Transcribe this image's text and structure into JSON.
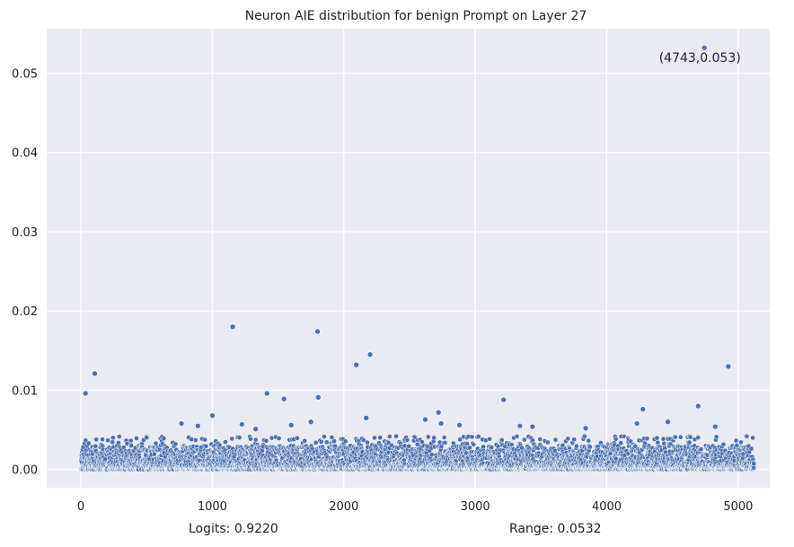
{
  "chart_data": {
    "type": "scatter",
    "title": "Neuron AIE distribution for benign Prompt on Layer 27",
    "xlabel": "",
    "ylabel": "",
    "xlim": [
      -260,
      5240
    ],
    "ylim": [
      -0.0023,
      0.0556
    ],
    "xticks": [
      0,
      1000,
      2000,
      3000,
      4000,
      5000
    ],
    "xtick_labels": [
      "0",
      "1000",
      "2000",
      "3000",
      "4000",
      "5000"
    ],
    "yticks": [
      0.0,
      0.01,
      0.02,
      0.03,
      0.04,
      0.05
    ],
    "ytick_labels": [
      "0.00",
      "0.01",
      "0.02",
      "0.03",
      "0.04",
      "0.05"
    ],
    "grid": true,
    "point_color": "#4c72b0",
    "background_color": "#eaeaf2",
    "n_points": 5120,
    "bulk_range": [
      0.0,
      0.003
    ],
    "outliers": [
      {
        "x": 4743,
        "y": 0.0532
      },
      {
        "x": 1155,
        "y": 0.018
      },
      {
        "x": 1800,
        "y": 0.0174
      },
      {
        "x": 2200,
        "y": 0.0145
      },
      {
        "x": 2095,
        "y": 0.0132
      },
      {
        "x": 4925,
        "y": 0.013
      },
      {
        "x": 105,
        "y": 0.0121
      },
      {
        "x": 35,
        "y": 0.0096
      },
      {
        "x": 1415,
        "y": 0.0096
      },
      {
        "x": 1805,
        "y": 0.0091
      },
      {
        "x": 1545,
        "y": 0.0089
      },
      {
        "x": 3215,
        "y": 0.0088
      },
      {
        "x": 4695,
        "y": 0.008
      },
      {
        "x": 4275,
        "y": 0.0076
      },
      {
        "x": 2720,
        "y": 0.0072
      },
      {
        "x": 1000,
        "y": 0.0068
      },
      {
        "x": 2170,
        "y": 0.0065
      },
      {
        "x": 2620,
        "y": 0.0063
      },
      {
        "x": 4465,
        "y": 0.006
      },
      {
        "x": 1750,
        "y": 0.006
      },
      {
        "x": 2740,
        "y": 0.0058
      },
      {
        "x": 4230,
        "y": 0.0058
      },
      {
        "x": 765,
        "y": 0.0058
      },
      {
        "x": 1225,
        "y": 0.0057
      },
      {
        "x": 890,
        "y": 0.0055
      },
      {
        "x": 3340,
        "y": 0.0055
      },
      {
        "x": 4825,
        "y": 0.0054
      },
      {
        "x": 3435,
        "y": 0.0054
      },
      {
        "x": 1600,
        "y": 0.0056
      },
      {
        "x": 2880,
        "y": 0.0056
      },
      {
        "x": 3840,
        "y": 0.0052
      },
      {
        "x": 1330,
        "y": 0.0051
      }
    ],
    "annotation": {
      "text": "(4743,0.053)",
      "x": 4743,
      "y": 0.053
    }
  },
  "footer": {
    "logits": "Logits: 0.9220",
    "range": "Range: 0.0532"
  }
}
